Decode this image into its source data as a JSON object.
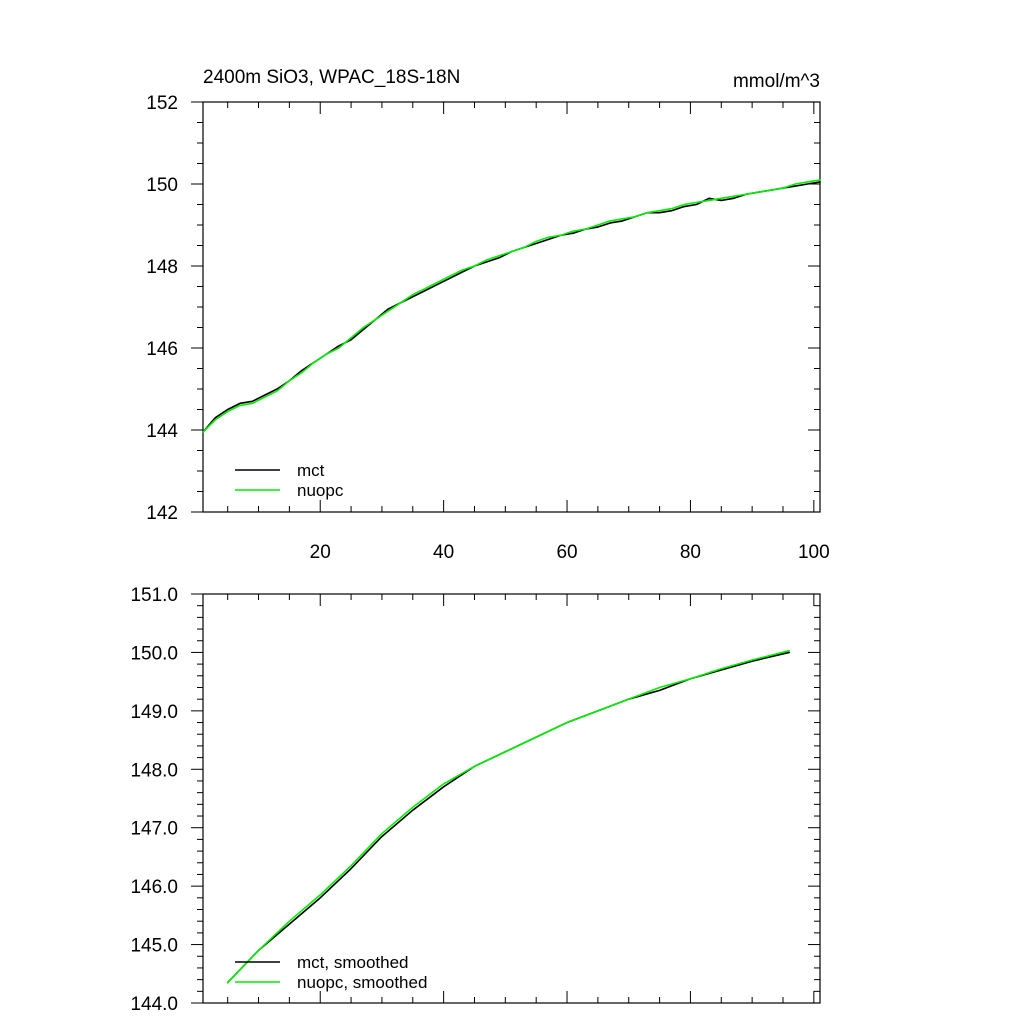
{
  "chart_data": [
    {
      "type": "line",
      "title": "2400m SiO3, WPAC_18S-18N",
      "units": "mmol/m^3",
      "xlim": [
        1,
        101
      ],
      "ylim": [
        142,
        152
      ],
      "x_ticks": [
        20,
        40,
        60,
        80,
        100
      ],
      "x_tick_labels": [
        "20",
        "40",
        "60",
        "80",
        "100"
      ],
      "y_ticks": [
        142,
        144,
        146,
        148,
        150,
        152
      ],
      "y_tick_labels": [
        "142",
        "144",
        "146",
        "148",
        "150",
        "152"
      ],
      "legend_position": "bottom-left",
      "series": [
        {
          "name": "mct",
          "color": "#000000",
          "x": [
            1,
            3,
            5,
            7,
            9,
            11,
            13,
            15,
            17,
            19,
            21,
            23,
            25,
            27,
            29,
            31,
            33,
            35,
            37,
            39,
            41,
            43,
            45,
            47,
            49,
            51,
            53,
            55,
            57,
            59,
            61,
            63,
            65,
            67,
            69,
            71,
            73,
            75,
            77,
            79,
            81,
            83,
            85,
            87,
            89,
            91,
            93,
            95,
            97,
            99,
            101
          ],
          "values": [
            143.95,
            144.3,
            144.5,
            144.65,
            144.7,
            144.85,
            145.0,
            145.2,
            145.45,
            145.65,
            145.85,
            146.05,
            146.2,
            146.45,
            146.7,
            146.95,
            147.1,
            147.25,
            147.4,
            147.55,
            147.7,
            147.85,
            148.0,
            148.1,
            148.2,
            148.35,
            148.45,
            148.55,
            148.65,
            148.75,
            148.8,
            148.9,
            148.95,
            149.05,
            149.1,
            149.2,
            149.3,
            149.3,
            149.35,
            149.45,
            149.5,
            149.65,
            149.6,
            149.65,
            149.75,
            149.8,
            149.85,
            149.9,
            149.95,
            150.0,
            150.05
          ]
        },
        {
          "name": "nuopc",
          "color": "#00ee00",
          "x": [
            1,
            3,
            5,
            7,
            9,
            11,
            13,
            15,
            17,
            19,
            21,
            23,
            25,
            27,
            29,
            31,
            33,
            35,
            37,
            39,
            41,
            43,
            45,
            47,
            49,
            51,
            53,
            55,
            57,
            59,
            61,
            63,
            65,
            67,
            69,
            71,
            73,
            75,
            77,
            79,
            81,
            83,
            85,
            87,
            89,
            91,
            93,
            95,
            97,
            99,
            101
          ],
          "values": [
            143.95,
            144.25,
            144.45,
            144.6,
            144.65,
            144.8,
            144.95,
            145.2,
            145.4,
            145.65,
            145.85,
            146.0,
            146.25,
            146.5,
            146.7,
            146.9,
            147.1,
            147.3,
            147.45,
            147.6,
            147.75,
            147.9,
            148.0,
            148.15,
            148.25,
            148.35,
            148.45,
            148.6,
            148.7,
            148.75,
            148.85,
            148.9,
            149.0,
            149.1,
            149.15,
            149.2,
            149.3,
            149.35,
            149.4,
            149.5,
            149.55,
            149.6,
            149.65,
            149.7,
            149.75,
            149.8,
            149.85,
            149.9,
            150.0,
            150.05,
            150.1
          ]
        }
      ]
    },
    {
      "type": "line",
      "xlim": [
        1,
        101
      ],
      "ylim": [
        144.0,
        151.0
      ],
      "x_ticks": [
        20,
        40,
        60,
        80,
        100
      ],
      "y_ticks": [
        144.0,
        145.0,
        146.0,
        147.0,
        148.0,
        149.0,
        150.0,
        151.0
      ],
      "y_tick_labels": [
        "144.0",
        "145.0",
        "146.0",
        "147.0",
        "148.0",
        "149.0",
        "150.0",
        "151.0"
      ],
      "legend_position": "bottom-left",
      "series": [
        {
          "name": "mct, smoothed",
          "color": "#000000",
          "x": [
            5,
            10,
            15,
            20,
            25,
            30,
            35,
            40,
            45,
            50,
            55,
            60,
            65,
            70,
            75,
            80,
            85,
            90,
            96
          ],
          "values": [
            144.35,
            144.9,
            145.35,
            145.8,
            146.3,
            146.85,
            147.3,
            147.7,
            148.05,
            148.3,
            148.55,
            148.8,
            149.0,
            149.2,
            149.35,
            149.55,
            149.7,
            149.85,
            150.0
          ]
        },
        {
          "name": "nuopc, smoothed",
          "color": "#00ee00",
          "x": [
            5,
            10,
            15,
            20,
            25,
            30,
            35,
            40,
            45,
            50,
            55,
            60,
            65,
            70,
            75,
            80,
            85,
            90,
            96
          ],
          "values": [
            144.35,
            144.9,
            145.4,
            145.85,
            146.35,
            146.9,
            147.35,
            147.75,
            148.05,
            148.3,
            148.55,
            148.8,
            149.0,
            149.2,
            149.4,
            149.55,
            149.72,
            149.87,
            150.03
          ]
        }
      ]
    }
  ]
}
